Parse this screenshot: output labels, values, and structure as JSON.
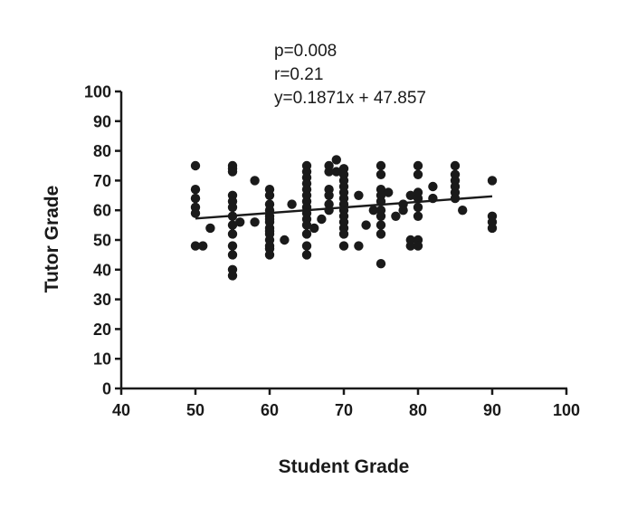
{
  "chart_data": {
    "type": "scatter",
    "annotations": [
      "p=0.008",
      "r=0.21",
      "y=0.1871x + 47.857"
    ],
    "xlabel": "Student Grade",
    "ylabel": "Tutor Grade",
    "xlim": [
      40,
      100
    ],
    "ylim": [
      0,
      100
    ],
    "xticks": [
      40,
      50,
      60,
      70,
      80,
      90,
      100
    ],
    "yticks": [
      0,
      10,
      20,
      30,
      40,
      50,
      60,
      70,
      80,
      90,
      100
    ],
    "grid": false,
    "legend": "none",
    "marker_color": "#1a1a1a",
    "regression": {
      "slope": 0.1871,
      "intercept": 47.857,
      "x_range": [
        50,
        90
      ]
    },
    "points": [
      [
        50,
        75
      ],
      [
        50,
        67
      ],
      [
        50,
        64
      ],
      [
        50,
        61
      ],
      [
        50,
        59
      ],
      [
        50,
        48
      ],
      [
        51,
        48
      ],
      [
        52,
        54
      ],
      [
        55,
        75
      ],
      [
        55,
        74
      ],
      [
        55,
        73
      ],
      [
        55,
        65
      ],
      [
        55,
        63
      ],
      [
        55,
        61
      ],
      [
        55,
        58
      ],
      [
        55,
        55
      ],
      [
        55,
        52
      ],
      [
        55,
        48
      ],
      [
        55,
        45
      ],
      [
        55,
        40
      ],
      [
        55,
        38
      ],
      [
        56,
        56
      ],
      [
        58,
        70
      ],
      [
        58,
        56
      ],
      [
        60,
        67
      ],
      [
        60,
        65
      ],
      [
        60,
        62
      ],
      [
        60,
        60
      ],
      [
        60,
        58
      ],
      [
        60,
        57
      ],
      [
        60,
        56
      ],
      [
        60,
        54
      ],
      [
        60,
        53
      ],
      [
        60,
        52
      ],
      [
        60,
        50
      ],
      [
        60,
        48
      ],
      [
        60,
        47
      ],
      [
        60,
        45
      ],
      [
        62,
        50
      ],
      [
        63,
        62
      ],
      [
        65,
        75
      ],
      [
        65,
        73
      ],
      [
        65,
        71
      ],
      [
        65,
        69
      ],
      [
        65,
        67
      ],
      [
        65,
        65
      ],
      [
        65,
        63
      ],
      [
        65,
        61
      ],
      [
        65,
        59
      ],
      [
        65,
        57
      ],
      [
        65,
        55
      ],
      [
        65,
        52
      ],
      [
        65,
        48
      ],
      [
        65,
        45
      ],
      [
        66,
        54
      ],
      [
        67,
        57
      ],
      [
        68,
        75
      ],
      [
        68,
        73
      ],
      [
        68,
        67
      ],
      [
        68,
        65
      ],
      [
        68,
        62
      ],
      [
        68,
        60
      ],
      [
        69,
        77
      ],
      [
        69,
        73
      ],
      [
        70,
        74
      ],
      [
        70,
        72
      ],
      [
        70,
        70
      ],
      [
        70,
        68
      ],
      [
        70,
        66
      ],
      [
        70,
        64
      ],
      [
        70,
        62
      ],
      [
        70,
        60
      ],
      [
        70,
        58
      ],
      [
        70,
        56
      ],
      [
        70,
        54
      ],
      [
        70,
        52
      ],
      [
        70,
        48
      ],
      [
        72,
        65
      ],
      [
        72,
        48
      ],
      [
        73,
        55
      ],
      [
        74,
        60
      ],
      [
        75,
        75
      ],
      [
        75,
        72
      ],
      [
        75,
        67
      ],
      [
        75,
        65
      ],
      [
        75,
        63
      ],
      [
        75,
        60
      ],
      [
        75,
        58
      ],
      [
        75,
        55
      ],
      [
        75,
        52
      ],
      [
        75,
        42
      ],
      [
        76,
        66
      ],
      [
        77,
        58
      ],
      [
        78,
        62
      ],
      [
        78,
        60
      ],
      [
        79,
        65
      ],
      [
        79,
        50
      ],
      [
        79,
        48
      ],
      [
        80,
        75
      ],
      [
        80,
        72
      ],
      [
        80,
        66
      ],
      [
        80,
        64
      ],
      [
        80,
        61
      ],
      [
        80,
        58
      ],
      [
        80,
        50
      ],
      [
        80,
        48
      ],
      [
        82,
        68
      ],
      [
        82,
        64
      ],
      [
        85,
        75
      ],
      [
        85,
        72
      ],
      [
        85,
        70
      ],
      [
        85,
        68
      ],
      [
        85,
        66
      ],
      [
        85,
        64
      ],
      [
        86,
        60
      ],
      [
        90,
        70
      ],
      [
        90,
        58
      ],
      [
        90,
        56
      ],
      [
        90,
        54
      ]
    ]
  }
}
